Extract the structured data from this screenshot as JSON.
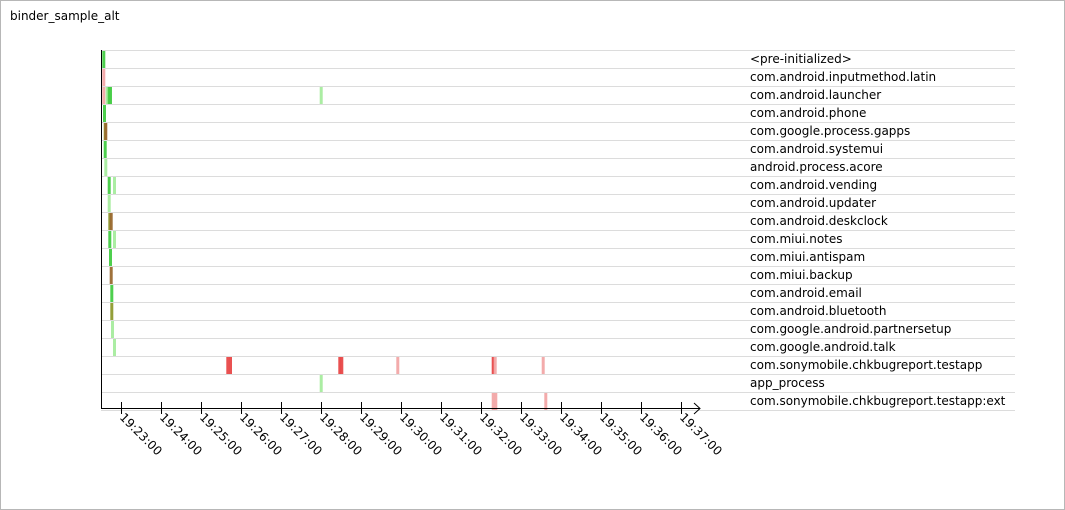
{
  "chart_data": {
    "type": "timeline",
    "title": "binder_sample_alt",
    "x_axis": {
      "ticks": [
        "19:23:00",
        "19:24:00",
        "19:25:00",
        "19:26:00",
        "19:27:00",
        "19:28:00",
        "19:29:00",
        "19:30:00",
        "19:31:00",
        "19:32:00",
        "19:33:00",
        "19:34:00",
        "19:35:00",
        "19:36:00",
        "19:37:00"
      ],
      "range": [
        "19:22:30",
        "19:37:30"
      ]
    },
    "colors": {
      "green": "#44cc44",
      "lightgreen": "#a6ec9e",
      "olive": "#8e9a2e",
      "brown": "#9a6a30",
      "pink": "#f2a6a6",
      "red": "#e84848"
    },
    "rows": [
      {
        "label": "<pre-initialized>",
        "events": [
          {
            "t": "19:22:32",
            "c": "green"
          }
        ]
      },
      {
        "label": "com.android.inputmethod.latin",
        "events": [
          {
            "t": "19:22:32",
            "c": "pink"
          }
        ]
      },
      {
        "label": "com.android.launcher",
        "events": [
          {
            "t": "19:22:32",
            "c": "pink"
          },
          {
            "t": "19:22:37",
            "c": "lightgreen"
          },
          {
            "t": "19:22:40",
            "c": "green"
          },
          {
            "t": "19:22:42",
            "c": "green"
          },
          {
            "t": "19:27:58",
            "c": "lightgreen"
          }
        ]
      },
      {
        "label": "com.android.phone",
        "events": [
          {
            "t": "19:22:33",
            "c": "green"
          }
        ]
      },
      {
        "label": "com.google.process.gapps",
        "events": [
          {
            "t": "19:22:34",
            "c": "olive"
          },
          {
            "t": "19:22:35",
            "c": "brown"
          }
        ]
      },
      {
        "label": "com.android.systemui",
        "events": [
          {
            "t": "19:22:34",
            "c": "green"
          }
        ]
      },
      {
        "label": "android.process.acore",
        "events": [
          {
            "t": "19:22:35",
            "c": "lightgreen"
          }
        ]
      },
      {
        "label": "com.android.vending",
        "events": [
          {
            "t": "19:22:40",
            "c": "green"
          },
          {
            "t": "19:22:48",
            "c": "lightgreen"
          }
        ]
      },
      {
        "label": "com.android.updater",
        "events": [
          {
            "t": "19:22:40",
            "c": "lightgreen"
          }
        ]
      },
      {
        "label": "com.android.deskclock",
        "events": [
          {
            "t": "19:22:41",
            "c": "olive"
          },
          {
            "t": "19:22:43",
            "c": "brown"
          }
        ]
      },
      {
        "label": "com.miui.notes",
        "events": [
          {
            "t": "19:22:41",
            "c": "green"
          },
          {
            "t": "19:22:48",
            "c": "lightgreen"
          }
        ]
      },
      {
        "label": "com.miui.antispam",
        "events": [
          {
            "t": "19:22:42",
            "c": "green"
          }
        ]
      },
      {
        "label": "com.miui.backup",
        "events": [
          {
            "t": "19:22:43",
            "c": "brown"
          }
        ]
      },
      {
        "label": "com.android.email",
        "events": [
          {
            "t": "19:22:44",
            "c": "green"
          }
        ]
      },
      {
        "label": "com.android.bluetooth",
        "events": [
          {
            "t": "19:22:44",
            "c": "olive"
          }
        ]
      },
      {
        "label": "com.google.android.partnersetup",
        "events": [
          {
            "t": "19:22:45",
            "c": "lightgreen"
          }
        ]
      },
      {
        "label": "com.google.android.talk",
        "events": [
          {
            "t": "19:22:48",
            "c": "lightgreen"
          }
        ]
      },
      {
        "label": "com.sonymobile.chkbugreport.testapp",
        "events": [
          {
            "t": "19:25:38",
            "c": "red"
          },
          {
            "t": "19:25:42",
            "c": "red"
          },
          {
            "t": "19:28:26",
            "c": "red"
          },
          {
            "t": "19:28:29",
            "c": "red"
          },
          {
            "t": "19:29:53",
            "c": "pink"
          },
          {
            "t": "19:32:16",
            "c": "red"
          },
          {
            "t": "19:32:19",
            "c": "pink"
          },
          {
            "t": "19:33:31",
            "c": "pink"
          }
        ]
      },
      {
        "label": "app_process",
        "events": [
          {
            "t": "19:27:58",
            "c": "lightgreen"
          }
        ]
      },
      {
        "label": "com.sonymobile.chkbugreport.testapp:ext",
        "events": [
          {
            "t": "19:32:16",
            "c": "pink"
          },
          {
            "t": "19:32:20",
            "c": "pink"
          },
          {
            "t": "19:33:35",
            "c": "pink"
          }
        ]
      }
    ]
  }
}
